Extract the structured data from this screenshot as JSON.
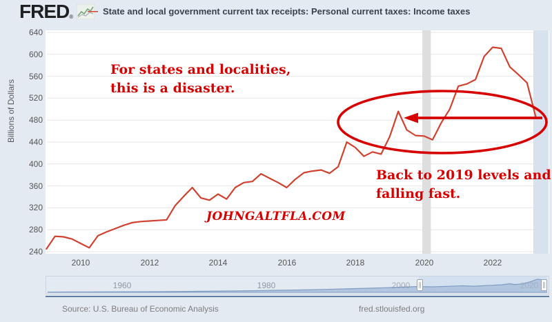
{
  "header": {
    "logo_text": "FRED",
    "logo_reg": "®",
    "legend_marker": "—",
    "series_title": "State and local government current tax receipts: Personal current taxes: Income taxes"
  },
  "annotations": {
    "note1_line1": "For states and localities,",
    "note1_line2": "this is a disaster.",
    "note2_line1": "Back to 2019 levels and",
    "note2_line2": "falling fast.",
    "watermark": "JOHNGALTFLA.COM"
  },
  "footer": {
    "source": "Source: U.S. Bureau of Economic Analysis",
    "site": "fred.stlouisfed.org"
  },
  "slider": {
    "labels": [
      {
        "text": "1960",
        "x": 176,
        "opacity": 1
      },
      {
        "text": "1980",
        "x": 385,
        "opacity": 1
      },
      {
        "text": "2000",
        "x": 580,
        "opacity": 0.75
      },
      {
        "text": "2020",
        "x": 766,
        "opacity": 0.45
      }
    ]
  },
  "colors": {
    "line": "#d0422f",
    "annotation": "#d60000",
    "page_bg": "#e3eaf2",
    "plot_bg": "#ffffff",
    "gridline": "#e6e6e6",
    "recession_band": "#dedede",
    "right_band": "#d8e2ef",
    "axis_text": "#555555",
    "mini_area_fill": "#aabfdc",
    "mini_area_line": "#7e9cc2",
    "selection": "#c8d8ec",
    "divider_line": "#5d7fa3",
    "logo_green": "#7aa37a",
    "logo_gray": "#9aa5ad"
  },
  "chart_data": {
    "type": "line",
    "title": "State and local government current tax receipts: Personal current taxes: Income taxes",
    "xlabel": "",
    "ylabel": "Billions of Dollars",
    "x_period": "quarterly",
    "x_start": 2009.0,
    "x_step": 0.25,
    "xlim": [
      2009.0,
      2023.6
    ],
    "ylim": [
      240,
      640
    ],
    "y_ticks": [
      640,
      600,
      560,
      520,
      480,
      440,
      400,
      360,
      320,
      280,
      240
    ],
    "x_ticks": [
      2010,
      2012,
      2014,
      2016,
      2018,
      2020,
      2022
    ],
    "grid": "horizontal",
    "legend_position": "top",
    "series": [
      {
        "name": "State and local government current tax receipts: Personal current taxes: Income taxes",
        "color": "#d0422f",
        "values": [
          245,
          268,
          267,
          263,
          255,
          247,
          269,
          276,
          282,
          288,
          293,
          295,
          296,
          297,
          298,
          324,
          341,
          357,
          338,
          334,
          345,
          336,
          357,
          366,
          368,
          382,
          374,
          366,
          357,
          372,
          384,
          387,
          389,
          383,
          395,
          440,
          430,
          414,
          422,
          418,
          450,
          496,
          462,
          452,
          451,
          444,
          475,
          500,
          542,
          546,
          554,
          596,
          613,
          611,
          577,
          563,
          548,
          487
        ]
      }
    ],
    "recession_shading": [
      {
        "from": 2019.95,
        "to": 2020.2
      }
    ],
    "preview": {
      "type": "area",
      "note": "full-history navigator preview of same series",
      "profile": [
        [
          0,
          0.02
        ],
        [
          0.05,
          0.025
        ],
        [
          0.1,
          0.03
        ],
        [
          0.15,
          0.04
        ],
        [
          0.2,
          0.05
        ],
        [
          0.25,
          0.06
        ],
        [
          0.3,
          0.08
        ],
        [
          0.35,
          0.1
        ],
        [
          0.4,
          0.12
        ],
        [
          0.45,
          0.15
        ],
        [
          0.5,
          0.18
        ],
        [
          0.55,
          0.22
        ],
        [
          0.6,
          0.27
        ],
        [
          0.65,
          0.32
        ],
        [
          0.68,
          0.36
        ],
        [
          0.71,
          0.4
        ],
        [
          0.74,
          0.44
        ],
        [
          0.77,
          0.42
        ],
        [
          0.8,
          0.46
        ],
        [
          0.83,
          0.5
        ],
        [
          0.855,
          0.47
        ],
        [
          0.87,
          0.5
        ],
        [
          0.89,
          0.54
        ],
        [
          0.91,
          0.58
        ],
        [
          0.925,
          0.66
        ],
        [
          0.935,
          0.6
        ],
        [
          0.95,
          0.64
        ],
        [
          0.96,
          0.74
        ],
        [
          0.97,
          0.86
        ],
        [
          0.98,
          1.0
        ],
        [
          0.99,
          0.96
        ],
        [
          1.0,
          0.8
        ]
      ]
    }
  }
}
